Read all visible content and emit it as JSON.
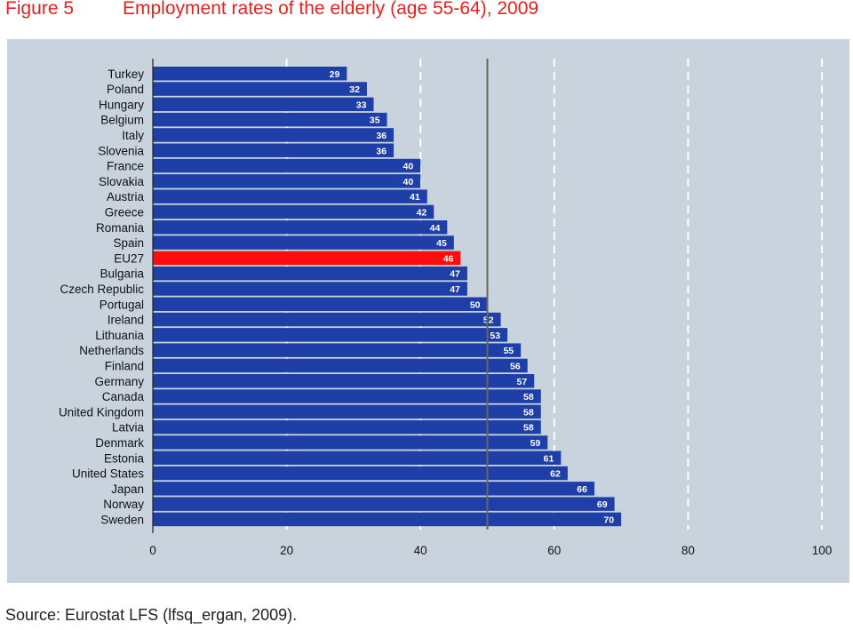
{
  "figure": {
    "label": "Figure 5",
    "title": "Employment rates of the elderly (age 55-64), 2009",
    "source": "Source: Eurostat LFS (lfsq_ergan, 2009)."
  },
  "colors": {
    "bar": "#1f3fa8",
    "highlight": "#ff0d0d",
    "panel": "#c9d3de",
    "reference_line": "#666666",
    "grid": "#ffffff"
  },
  "chart_data": {
    "type": "bar",
    "orientation": "horizontal",
    "title": "Employment rates of the elderly (age 55-64), 2009",
    "xlabel": "",
    "ylabel": "",
    "xlim": [
      0,
      100
    ],
    "x_ticks": [
      0,
      20,
      40,
      60,
      80,
      100
    ],
    "grid": "vertical dashed lines at 20, 40, 60, 80, 100",
    "reference_line": 50,
    "highlight": "EU27",
    "categories": [
      "Turkey",
      "Poland",
      "Hungary",
      "Belgium",
      "Italy",
      "Slovenia",
      "France",
      "Slovakia",
      "Austria",
      "Greece",
      "Romania",
      "Spain",
      "EU27",
      "Bulgaria",
      "Czech Republic",
      "Portugal",
      "Ireland",
      "Lithuania",
      "Netherlands",
      "Finland",
      "Germany",
      "Canada",
      "United Kingdom",
      "Latvia",
      "Denmark",
      "Estonia",
      "United States",
      "Japan",
      "Norway",
      "Sweden"
    ],
    "values": [
      29,
      32,
      33,
      35,
      36,
      36,
      40,
      40,
      41,
      42,
      44,
      45,
      46,
      47,
      47,
      50,
      52,
      53,
      55,
      56,
      57,
      58,
      58,
      58,
      59,
      61,
      62,
      66,
      69,
      70
    ]
  }
}
